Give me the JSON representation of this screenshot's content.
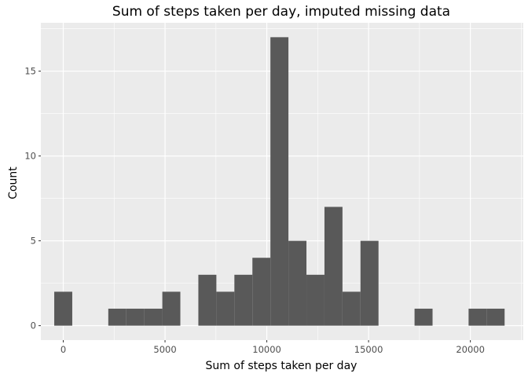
{
  "chart_data": {
    "type": "bar",
    "title": "Sum of steps taken per day, imputed missing data",
    "xlabel": "Sum of steps taken per day",
    "ylabel": "Count",
    "xlim": [
      -1100,
      22600
    ],
    "ylim": [
      -0.85,
      17.85
    ],
    "x_ticks": [
      0,
      5000,
      10000,
      15000,
      20000
    ],
    "x_tick_labels": [
      "0",
      "5000",
      "10000",
      "15000",
      "20000"
    ],
    "y_ticks": [
      0,
      5,
      10,
      15
    ],
    "y_tick_labels": [
      "0",
      "5",
      "10",
      "15"
    ],
    "bin_width": 885,
    "bins_center": [
      0,
      2655,
      3540,
      4425,
      5310,
      7080,
      7965,
      8850,
      9735,
      10620,
      11505,
      12390,
      13275,
      14160,
      15045,
      17700,
      20355,
      21240
    ],
    "counts": [
      2,
      1,
      1,
      1,
      2,
      3,
      2,
      3,
      4,
      17,
      5,
      3,
      7,
      2,
      5,
      1,
      1,
      1
    ],
    "grid": true,
    "bar_color": "#595959",
    "panel_background": "#ebebeb",
    "grid_color": "#ffffff"
  }
}
